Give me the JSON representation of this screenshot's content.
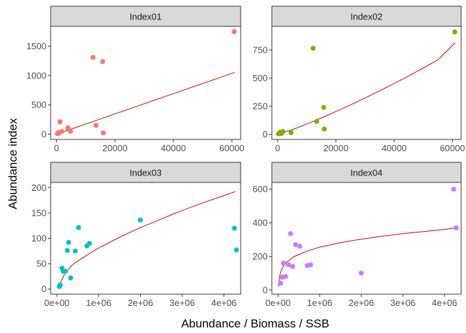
{
  "colors": {
    "strip_fill": "#D9D9D9",
    "frame": "#333333",
    "fit_line": "#CC0000",
    "Index01": "#F8766D",
    "Index02": "#7CAE00",
    "Index03": "#00BFC4",
    "Index04": "#C77CFF"
  },
  "chart_data": {
    "type": "scatter",
    "xlabel": "Abundance / Biomass / SSB",
    "ylabel": "Abundance index",
    "grid": false,
    "legend": "none",
    "panels": [
      {
        "name": "Index01",
        "xlim": [
          -2000,
          63000
        ],
        "ylim": [
          -90,
          1840
        ],
        "x_ticks": [
          0,
          20000,
          40000,
          60000
        ],
        "x_tick_labels": [
          "0",
          "20000",
          "40000",
          "60000"
        ],
        "y_ticks": [
          0,
          500,
          1000,
          1500
        ],
        "y_tick_labels": [
          "0",
          "500",
          "1000",
          "1500"
        ],
        "points": [
          [
            300,
            10
          ],
          [
            600,
            30
          ],
          [
            900,
            20
          ],
          [
            1200,
            210
          ],
          [
            1800,
            45
          ],
          [
            3900,
            110
          ],
          [
            4800,
            50
          ],
          [
            12500,
            1310
          ],
          [
            13500,
            150
          ],
          [
            15800,
            1240
          ],
          [
            16000,
            20
          ],
          [
            60800,
            1750
          ]
        ],
        "fit": [
          [
            0,
            0
          ],
          [
            61000,
            1055
          ]
        ]
      },
      {
        "name": "Index02",
        "xlim": [
          -2000,
          63000
        ],
        "ylim": [
          -45,
          960
        ],
        "x_ticks": [
          0,
          20000,
          40000,
          60000
        ],
        "x_tick_labels": [
          "0",
          "20000",
          "40000",
          "60000"
        ],
        "y_ticks": [
          0,
          250,
          500,
          750
        ],
        "y_tick_labels": [
          "0",
          "250",
          "500",
          "750"
        ],
        "points": [
          [
            300,
            5
          ],
          [
            600,
            10
          ],
          [
            900,
            20
          ],
          [
            1300,
            8
          ],
          [
            1800,
            25
          ],
          [
            4600,
            15
          ],
          [
            12200,
            765
          ],
          [
            13400,
            115
          ],
          [
            15800,
            240
          ],
          [
            16000,
            48
          ],
          [
            60800,
            910
          ]
        ],
        "fit": [
          [
            0,
            0
          ],
          [
            5000,
            42
          ],
          [
            10000,
            92
          ],
          [
            15000,
            146
          ],
          [
            20000,
            203
          ],
          [
            25000,
            262
          ],
          [
            30000,
            323
          ],
          [
            35000,
            387
          ],
          [
            40000,
            452
          ],
          [
            45000,
            520
          ],
          [
            50000,
            590
          ],
          [
            55000,
            662
          ],
          [
            61000,
            815
          ]
        ]
      },
      {
        "name": "Index03",
        "xlim": [
          -150000,
          4400000
        ],
        "ylim": [
          -10,
          210
        ],
        "x_ticks": [
          0,
          1000000,
          2000000,
          3000000,
          4000000
        ],
        "x_tick_labels": [
          "0e+00",
          "1e+06",
          "2e+06",
          "3e+06",
          "4e+06"
        ],
        "y_ticks": [
          0,
          50,
          100,
          150,
          200
        ],
        "y_tick_labels": [
          "0",
          "50",
          "100",
          "150",
          "200"
        ],
        "points": [
          [
            60000,
            5
          ],
          [
            80000,
            8
          ],
          [
            120000,
            41
          ],
          [
            150000,
            35
          ],
          [
            200000,
            35
          ],
          [
            250000,
            76
          ],
          [
            280000,
            92
          ],
          [
            330000,
            22
          ],
          [
            440000,
            75
          ],
          [
            520000,
            121
          ],
          [
            720000,
            85
          ],
          [
            780000,
            90
          ],
          [
            2000000,
            136
          ],
          [
            4250000,
            120
          ],
          [
            4300000,
            77
          ]
        ],
        "fit": [
          [
            60000,
            5
          ],
          [
            100000,
            15
          ],
          [
            200000,
            32
          ],
          [
            400000,
            50
          ],
          [
            700000,
            66
          ],
          [
            1000000,
            81
          ],
          [
            1500000,
            102
          ],
          [
            2000000,
            121
          ],
          [
            2500000,
            138
          ],
          [
            3000000,
            155
          ],
          [
            3500000,
            170
          ],
          [
            4000000,
            184
          ],
          [
            4270000,
            192
          ]
        ]
      },
      {
        "name": "Index04",
        "xlim": [
          -150000,
          4400000
        ],
        "ylim": [
          -25,
          640
        ],
        "x_ticks": [
          0,
          1000000,
          2000000,
          3000000,
          4000000
        ],
        "x_tick_labels": [
          "0e+00",
          "1e+06",
          "2e+06",
          "3e+06",
          "4e+06"
        ],
        "y_ticks": [
          0,
          200,
          400,
          600
        ],
        "y_tick_labels": [
          "0",
          "200",
          "400",
          "600"
        ],
        "points": [
          [
            60000,
            40
          ],
          [
            100000,
            75
          ],
          [
            130000,
            160
          ],
          [
            180000,
            80
          ],
          [
            250000,
            150
          ],
          [
            300000,
            335
          ],
          [
            350000,
            140
          ],
          [
            420000,
            270
          ],
          [
            520000,
            260
          ],
          [
            700000,
            145
          ],
          [
            780000,
            150
          ],
          [
            2000000,
            100
          ],
          [
            4220000,
            600
          ],
          [
            4280000,
            370
          ]
        ],
        "fit": [
          [
            10000,
            20
          ],
          [
            30000,
            70
          ],
          [
            60000,
            105
          ],
          [
            100000,
            130
          ],
          [
            200000,
            165
          ],
          [
            400000,
            200
          ],
          [
            700000,
            232
          ],
          [
            1000000,
            255
          ],
          [
            1500000,
            282
          ],
          [
            2000000,
            302
          ],
          [
            2500000,
            320
          ],
          [
            3000000,
            335
          ],
          [
            3500000,
            348
          ],
          [
            4000000,
            360
          ],
          [
            4270000,
            370
          ]
        ]
      }
    ]
  }
}
